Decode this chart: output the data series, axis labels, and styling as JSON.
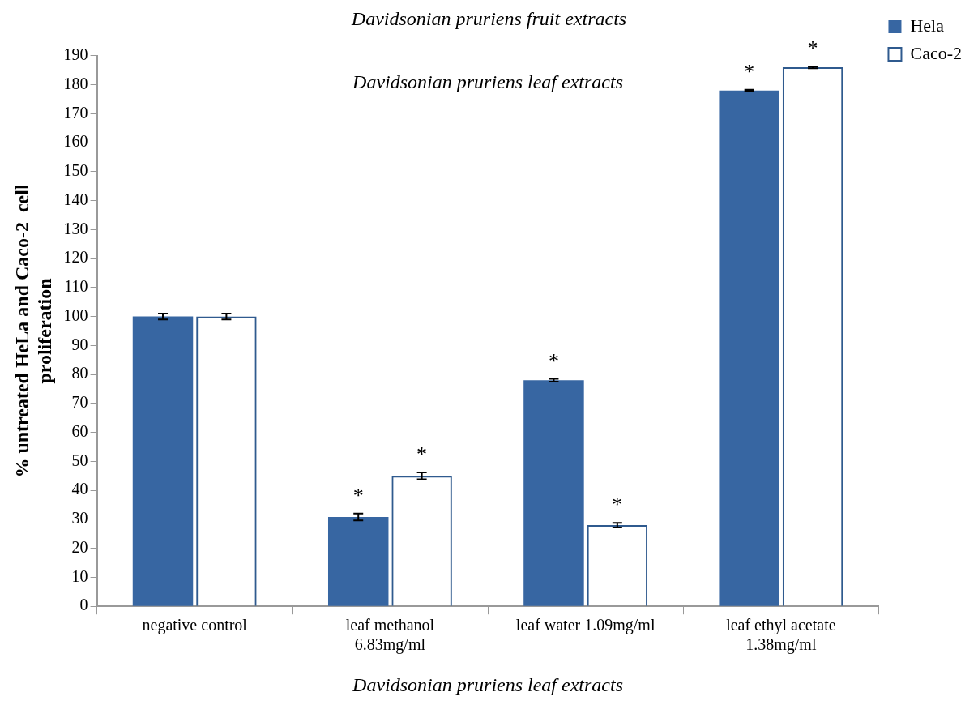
{
  "chart_data": {
    "type": "bar",
    "title": "Davidsonian pruriens fruit extracts",
    "xlabel": "Davidsonian pruriens leaf extracts",
    "ylabel": "% untreated HeLa and Caco-2  cell proliferation",
    "annotations": [
      "Davidsonian pruriens leaf extracts"
    ],
    "categories": [
      "negative control",
      "leaf methanol 6.83mg/ml",
      "leaf water 1.09mg/ml",
      "leaf ethyl acetate 1.38mg/ml"
    ],
    "series": [
      {
        "name": "Hela",
        "color": "#3766a2",
        "values": [
          100,
          30.8,
          78,
          178
        ],
        "errors": [
          1,
          1.2,
          0.5,
          0.3
        ],
        "value_labels": [
          null,
          "*",
          "*",
          "*"
        ]
      },
      {
        "name": "Caco-2",
        "color": "#2f5a8e",
        "values": [
          100,
          45,
          28,
          186
        ],
        "errors": [
          1,
          1.2,
          0.8,
          0.3
        ],
        "value_labels": [
          null,
          "*",
          "*",
          "*"
        ]
      }
    ],
    "ylim": [
      0,
      190
    ],
    "yticks": [
      0,
      10,
      20,
      30,
      40,
      50,
      60,
      70,
      80,
      90,
      100,
      110,
      120,
      130,
      140,
      150,
      160,
      170,
      180,
      190
    ],
    "grid": false,
    "legend": "right"
  }
}
